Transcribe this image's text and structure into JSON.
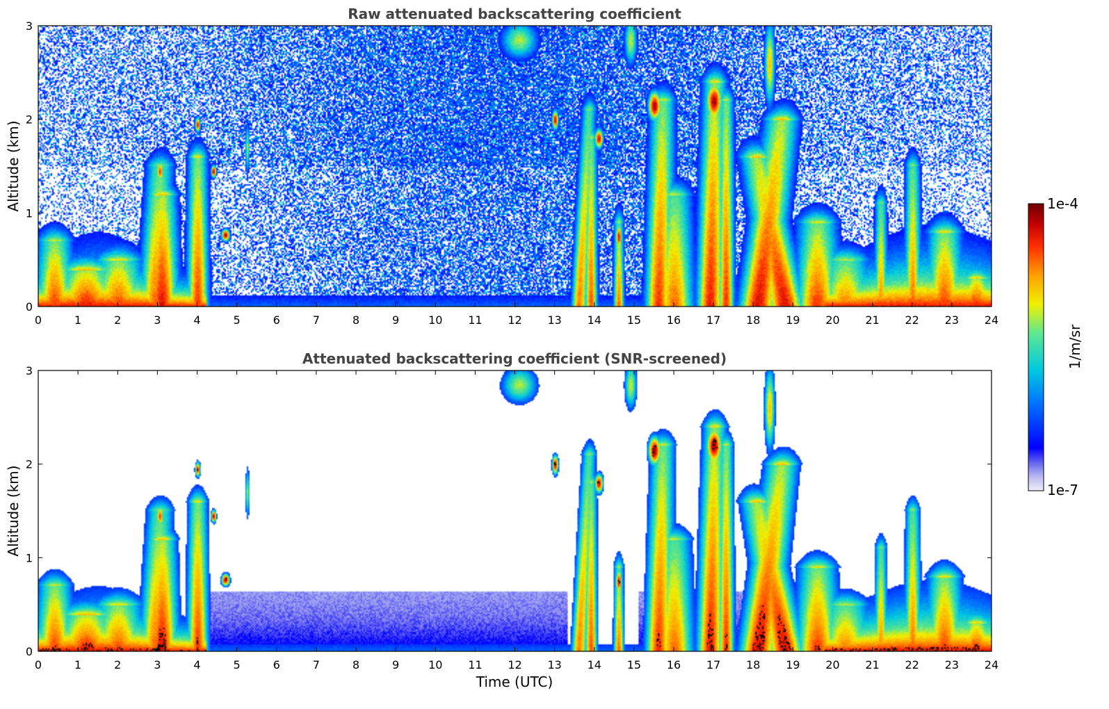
{
  "chart_data": [
    {
      "type": "heatmap",
      "title": "Raw attenuated backscattering coefficient",
      "ylabel": "Altitude (km)",
      "xlabel": "",
      "xlim": [
        0,
        24
      ],
      "ylim": [
        0,
        3
      ],
      "xticks": [
        "0",
        "1",
        "2",
        "3",
        "4",
        "5",
        "6",
        "7",
        "8",
        "9",
        "10",
        "11",
        "12",
        "13",
        "14",
        "15",
        "16",
        "17",
        "18",
        "19",
        "20",
        "21",
        "22",
        "23",
        "24"
      ],
      "yticks": [
        "0",
        "1",
        "2",
        "3"
      ],
      "screened": false
    },
    {
      "type": "heatmap",
      "title": "Attenuated backscattering coefficient (SNR-screened)",
      "ylabel": "Altitude (km)",
      "xlabel": "Time (UTC)",
      "xlim": [
        0,
        24
      ],
      "ylim": [
        0,
        3
      ],
      "xticks": [
        "0",
        "1",
        "2",
        "3",
        "4",
        "5",
        "6",
        "7",
        "8",
        "9",
        "10",
        "11",
        "12",
        "13",
        "14",
        "15",
        "16",
        "17",
        "18",
        "19",
        "20",
        "21",
        "22",
        "23",
        "24"
      ],
      "yticks": [
        "0",
        "1",
        "2",
        "3"
      ],
      "screened": true
    }
  ],
  "colorbar": {
    "min_label": "1e-7",
    "max_label": "1e-4",
    "unit_label": "1/m/sr",
    "scale": "log"
  },
  "colors": {
    "title": "#444444",
    "palette": [
      "#e8e8f8",
      "#1111ee",
      "#00c8e0",
      "#ffee00",
      "#ff5500",
      "#800000"
    ]
  }
}
